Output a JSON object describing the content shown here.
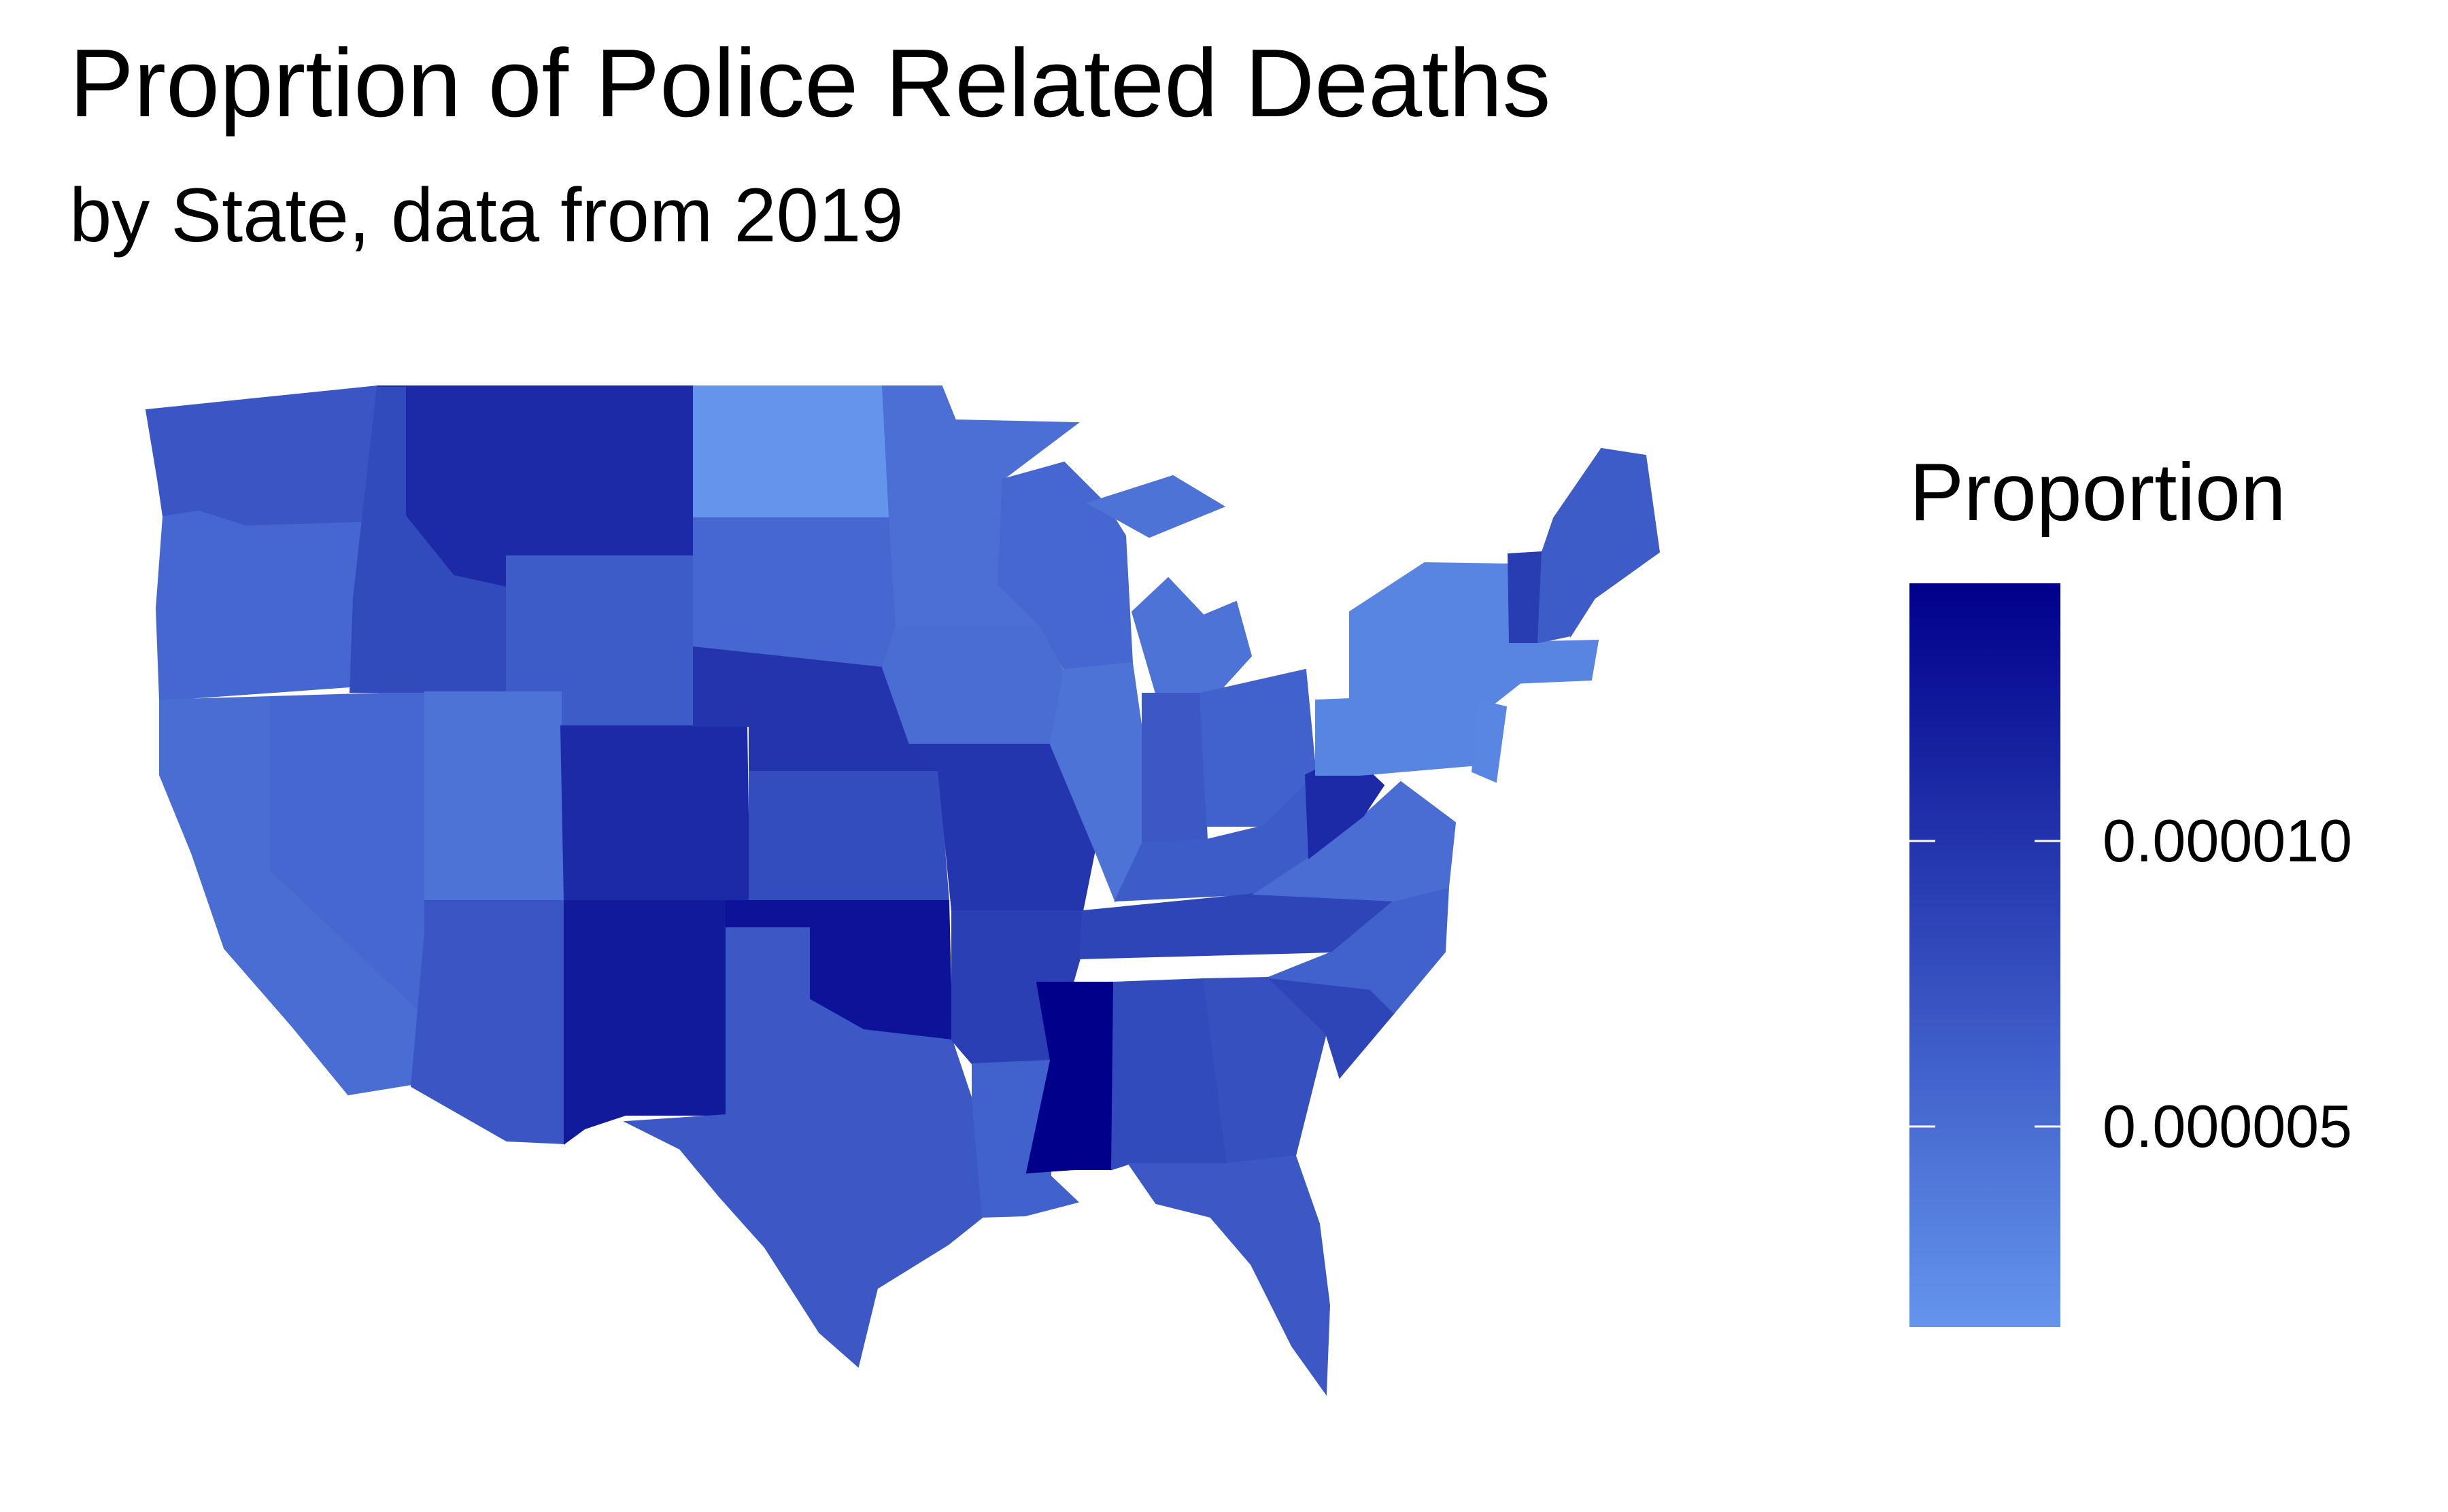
{
  "title": "Proprtion of Police Related Deaths",
  "subtitle": "by State, data from 2019",
  "legend": {
    "title": "Proportion",
    "low_color": "#6495ED",
    "high_color": "#00008B",
    "min": 1.5e-06,
    "max": 1.45e-05,
    "ticks": [
      {
        "value": 1e-05,
        "label": "0.000010"
      },
      {
        "value": 5e-06,
        "label": "0.000005"
      }
    ]
  },
  "chart_data": {
    "type": "choropleth",
    "title": "Proprtion of Police Related Deaths",
    "subtitle": "by State, data from 2019",
    "legend_title": "Proportion",
    "values": {
      "WA": 7e-06,
      "OR": 5.5e-06,
      "CA": 5e-06,
      "NV": 5.5e-06,
      "ID": 8e-06,
      "MT": 1.08e-05,
      "WY": 6.5e-06,
      "UT": 4.5e-06,
      "AZ": 7e-06,
      "CO": 1.08e-05,
      "NM": 1.22e-05,
      "ND": 1.5e-06,
      "SD": 5.5e-06,
      "NE": 1e-05,
      "KS": 7.8e-06,
      "OK": 1.28e-05,
      "TX": 6.8e-06,
      "MN": 4.8e-06,
      "IA": 5e-06,
      "MO": 9.8e-06,
      "AR": 9e-06,
      "LA": 6e-06,
      "WI": 5.5e-06,
      "IL": 4.5e-06,
      "MI": 4.5e-06,
      "IN": 6.8e-06,
      "OH": 6e-06,
      "KY": 6.5e-06,
      "TN": 8.5e-06,
      "MS": 1.45e-05,
      "AL": 8e-06,
      "GA": 7.5e-06,
      "FL": 6.8e-06,
      "SC": 8.5e-06,
      "NC": 6e-06,
      "VA": 5e-06,
      "WV": 1.08e-05,
      "PA": 3e-06,
      "NY": 3e-06,
      "ME": 6.5e-06,
      "VT": 9.2e-06,
      "NH": 6.5e-06,
      "MA": 3e-06,
      "NJ": 2.8e-06
    }
  }
}
